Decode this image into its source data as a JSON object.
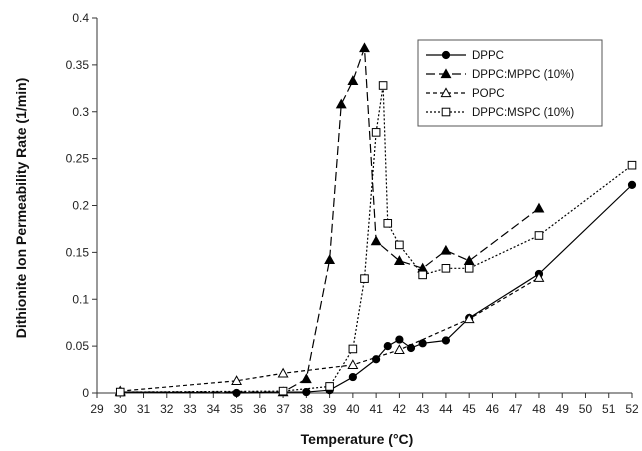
{
  "chart_data": {
    "type": "line",
    "xlabel": "Temperature (°C)",
    "ylabel": "Dithionite Ion Permeability Rate (1/min)",
    "xlim": [
      29,
      52
    ],
    "ylim": [
      0,
      0.4
    ],
    "x_ticks": [
      "29",
      "30",
      "31",
      "32",
      "33",
      "34",
      "35",
      "36",
      "37",
      "38",
      "39",
      "40",
      "41",
      "42",
      "43",
      "44",
      "45",
      "46",
      "47",
      "48",
      "49",
      "50",
      "51",
      "52"
    ],
    "y_ticks": [
      "0",
      "0.05",
      "0.1",
      "0.15",
      "0.2",
      "0.25",
      "0.3",
      "0.35",
      "0.4"
    ],
    "grid": false,
    "legend_position": "top-right",
    "series": [
      {
        "name": "DPPC",
        "color": "#000000",
        "dash": "solid",
        "marker": "filled-circle",
        "x": [
          30,
          35,
          37,
          38,
          39,
          40,
          41,
          41.5,
          42,
          42.5,
          43,
          44,
          45,
          48,
          52
        ],
        "y": [
          0.001,
          0.0,
          0.001,
          0.001,
          0.003,
          0.017,
          0.036,
          0.05,
          0.057,
          0.048,
          0.053,
          0.056,
          0.08,
          0.127,
          0.222
        ]
      },
      {
        "name": "DPPC:MPPC (10%)",
        "color": "#000000",
        "dash": "long-dash",
        "marker": "filled-triangle",
        "x": [
          30,
          37,
          38,
          39,
          39.5,
          40,
          40.5,
          41,
          42,
          43,
          44,
          45,
          48
        ],
        "y": [
          0.001,
          0.001,
          0.015,
          0.142,
          0.308,
          0.333,
          0.368,
          0.162,
          0.141,
          0.133,
          0.152,
          0.141,
          0.197
        ]
      },
      {
        "name": "POPC",
        "color": "#000000",
        "dash": "short-dash",
        "marker": "open-triangle",
        "x": [
          30,
          35,
          37,
          40,
          42,
          45,
          48
        ],
        "y": [
          0.002,
          0.013,
          0.021,
          0.03,
          0.046,
          0.079,
          0.123
        ]
      },
      {
        "name": "DPPC:MSPC (10%)",
        "color": "#000000",
        "dash": "dotted",
        "marker": "open-square",
        "x": [
          30,
          37,
          39,
          40,
          40.5,
          41,
          41.3,
          41.5,
          42,
          43,
          44,
          45,
          48,
          52
        ],
        "y": [
          0.001,
          0.002,
          0.007,
          0.047,
          0.122,
          0.278,
          0.328,
          0.181,
          0.158,
          0.126,
          0.133,
          0.133,
          0.168,
          0.243
        ]
      }
    ]
  }
}
